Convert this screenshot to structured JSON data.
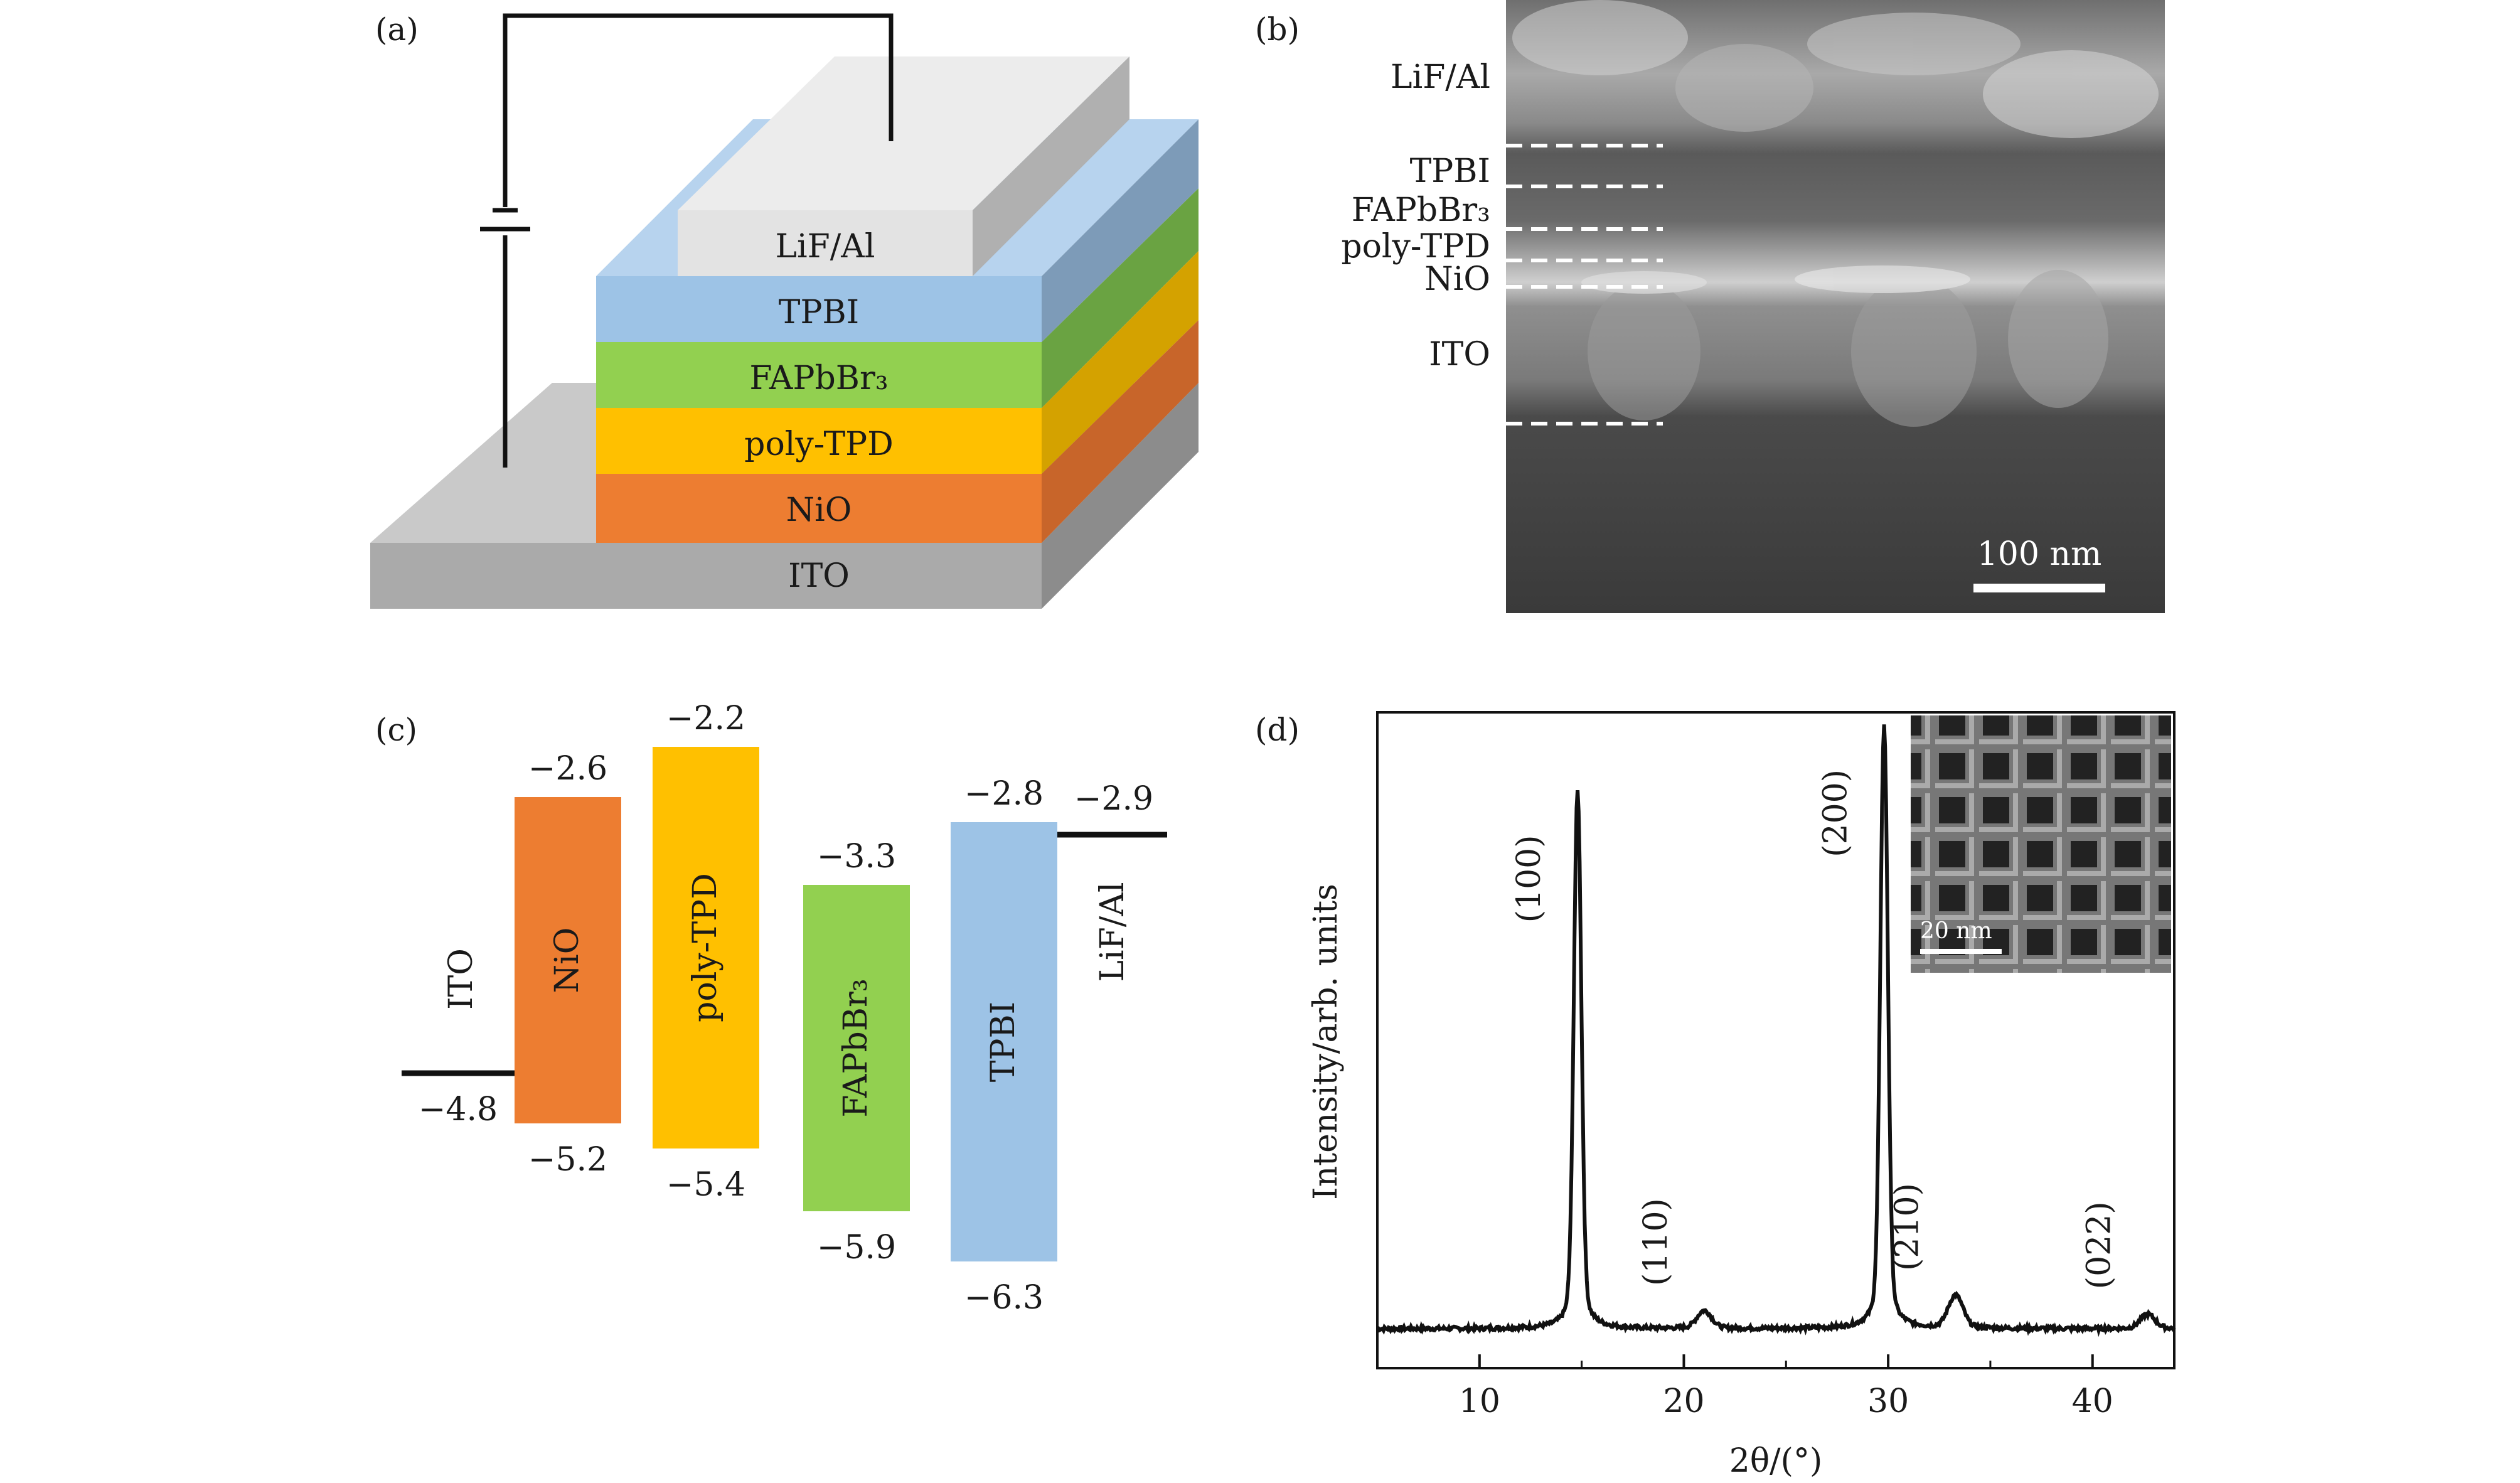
{
  "panels": {
    "a": "(a)",
    "b": "(b)",
    "c": "(c)",
    "d": "(d)"
  },
  "device": {
    "layers": [
      "LiF/Al",
      "TPBI",
      "FAPbBr₃",
      "poly-TPD",
      "NiO",
      "ITO"
    ],
    "colors": {
      "lif": "#e8e8e8",
      "tpbi": "#9dc3e6",
      "fapbbr3": "#92d050",
      "polytpd": "#ffc000",
      "nio": "#ed7d31",
      "ito": "#aaaaaa"
    }
  },
  "sem": {
    "labels": [
      "LiF/Al",
      "TPBI",
      "FAPbBr₃",
      "poly-TPD",
      "NiO",
      "ITO"
    ],
    "scalebar": "100 nm"
  },
  "energy": {
    "bars": [
      {
        "name": "NiO",
        "top": "−2.6",
        "bottom": "−5.2",
        "lumo": -2.6,
        "homo": -5.2,
        "color": "#ed7d31"
      },
      {
        "name": "poly-TPD",
        "top": "−2.2",
        "bottom": "−5.4",
        "lumo": -2.2,
        "homo": -5.4,
        "color": "#ffc000"
      },
      {
        "name": "FAPbBr₃",
        "top": "−3.3",
        "bottom": "−5.9",
        "lumo": -3.3,
        "homo": -5.9,
        "color": "#92d050"
      },
      {
        "name": "TPBI",
        "top": "−2.8",
        "bottom": "−6.3",
        "lumo": -2.8,
        "homo": -6.3,
        "color": "#9dc3e6"
      }
    ],
    "electrodes": [
      {
        "name": "ITO",
        "value": "−4.8",
        "level": -4.8
      },
      {
        "name": "LiF/Al",
        "value": "−2.9",
        "level": -2.9
      }
    ]
  },
  "chart_data": {
    "type": "line",
    "xlabel": "2θ/(°)",
    "ylabel": "Intensity/arb. units",
    "xlim": [
      5,
      44
    ],
    "xticks": [
      10,
      20,
      30,
      40
    ],
    "ylim": [
      0,
      1
    ],
    "series": [
      {
        "peaks": [
          {
            "x": 14.8,
            "y": 0.82,
            "label": "(100)"
          },
          {
            "x": 21.0,
            "y": 0.027,
            "label": "(110)"
          },
          {
            "x": 29.8,
            "y": 0.92,
            "label": "(200)"
          },
          {
            "x": 33.3,
            "y": 0.05,
            "label": "(210)"
          },
          {
            "x": 42.7,
            "y": 0.022,
            "label": "(022)"
          }
        ],
        "baseline": 0.06
      }
    ],
    "inset": {
      "scalebar": "20 nm"
    }
  }
}
